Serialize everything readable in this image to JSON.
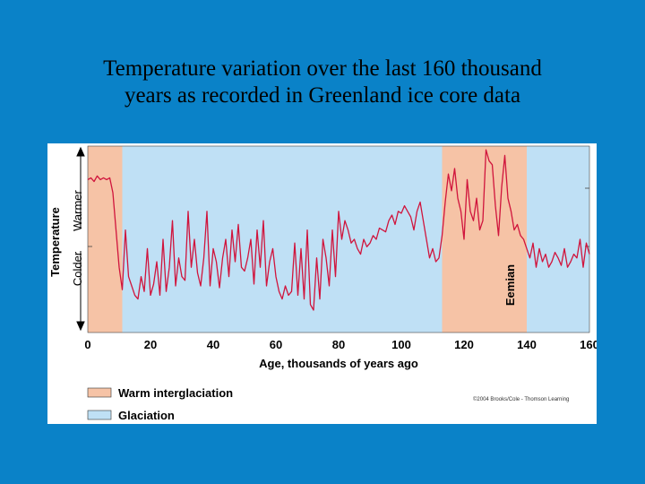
{
  "slide": {
    "title_line1": "Temperature variation over the last 160 thousand",
    "title_line2": "years as recorded in Greenland ice core data"
  },
  "colors": {
    "background": "#0a82c8",
    "warm": "#f6c3a6",
    "glaciation": "#bfe0f5",
    "line": "#d0143c"
  },
  "chart_data": {
    "type": "line",
    "title": "Temperature variation over the last 160 thousand years as recorded in Greenland ice core data",
    "xlabel": "Age, thousands of years ago",
    "ylabel": "Temperature",
    "y_direction_labels": {
      "warmer": "Warmer",
      "colder": "Colder"
    },
    "x_ticks": [
      0,
      20,
      40,
      60,
      80,
      100,
      120,
      140,
      160
    ],
    "xlim": [
      0,
      160
    ],
    "ylim": [
      0,
      10
    ],
    "y_scale_note": "relative temperature, 0 = coldest, 10 = warmest (unlabeled axis)",
    "shaded_regions": [
      {
        "label": "Warm interglaciation",
        "start": 0,
        "end": 11
      },
      {
        "label": "Glaciation",
        "start": 11,
        "end": 113
      },
      {
        "label": "Eemian",
        "start": 113,
        "end": 140,
        "type": "Warm interglaciation"
      },
      {
        "label": "Glaciation",
        "start": 140,
        "end": 160
      }
    ],
    "annotations": [
      {
        "text": "Eemian",
        "x": 136
      }
    ],
    "legend": [
      {
        "label": "Warm interglaciation",
        "color": "#f6c3a6"
      },
      {
        "label": "Glaciation",
        "color": "#bfe0f5"
      }
    ],
    "credit": "©2004 Brooks/Cole - Thomson Learning",
    "series": [
      {
        "name": "Greenland ice core temperature",
        "x": [
          0,
          1,
          2,
          3,
          4,
          5,
          6,
          7,
          8,
          9,
          10,
          11,
          12,
          13,
          14,
          15,
          16,
          17,
          18,
          19,
          20,
          21,
          22,
          23,
          24,
          25,
          26,
          27,
          28,
          29,
          30,
          31,
          32,
          33,
          34,
          35,
          36,
          37,
          38,
          39,
          40,
          41,
          42,
          43,
          44,
          45,
          46,
          47,
          48,
          49,
          50,
          51,
          52,
          53,
          54,
          55,
          56,
          57,
          58,
          59,
          60,
          61,
          62,
          63,
          64,
          65,
          66,
          67,
          68,
          69,
          70,
          71,
          72,
          73,
          74,
          75,
          76,
          77,
          78,
          79,
          80,
          81,
          82,
          83,
          84,
          85,
          86,
          87,
          88,
          89,
          90,
          91,
          92,
          93,
          94,
          95,
          96,
          97,
          98,
          99,
          100,
          101,
          102,
          103,
          104,
          105,
          106,
          107,
          108,
          109,
          110,
          111,
          112,
          113,
          114,
          115,
          116,
          117,
          118,
          119,
          120,
          121,
          122,
          123,
          124,
          125,
          126,
          127,
          128,
          129,
          130,
          131,
          132,
          133,
          134,
          135,
          136,
          137,
          138,
          139,
          140,
          141,
          142,
          143,
          144,
          145,
          146,
          147,
          148,
          149,
          150,
          151,
          152,
          153,
          154,
          155,
          156,
          157,
          158,
          159,
          160
        ],
        "y": [
          8.2,
          8.3,
          8.1,
          8.4,
          8.2,
          8.3,
          8.2,
          8.3,
          7.5,
          5.5,
          3.5,
          2.3,
          5.5,
          3.0,
          2.5,
          2.0,
          1.8,
          3.0,
          2.2,
          4.5,
          2.0,
          2.6,
          3.8,
          2.0,
          5.0,
          2.2,
          3.5,
          6.0,
          2.5,
          4.0,
          3.0,
          2.8,
          6.5,
          3.5,
          5.0,
          3.2,
          2.5,
          4.0,
          6.5,
          2.5,
          4.5,
          3.8,
          2.4,
          4.0,
          5.0,
          3.0,
          5.5,
          3.8,
          5.8,
          3.5,
          3.3,
          4.0,
          5.0,
          2.6,
          5.5,
          3.5,
          6.0,
          2.5,
          3.8,
          4.5,
          3.0,
          2.2,
          1.8,
          2.5,
          2.0,
          2.2,
          4.8,
          2.0,
          4.5,
          1.8,
          5.5,
          1.5,
          1.2,
          4.0,
          1.8,
          5.0,
          4.0,
          2.5,
          5.5,
          3.0,
          6.5,
          5.0,
          6.0,
          5.5,
          4.8,
          5.0,
          4.5,
          4.2,
          5.0,
          4.6,
          4.8,
          5.2,
          5.0,
          5.6,
          5.5,
          5.4,
          6.0,
          6.3,
          5.8,
          6.5,
          6.4,
          6.8,
          6.5,
          6.2,
          5.5,
          6.5,
          7.0,
          6.0,
          5.0,
          4.0,
          4.5,
          3.8,
          4.0,
          5.2,
          7.0,
          8.5,
          7.6,
          8.8,
          7.2,
          6.5,
          5.0,
          8.2,
          6.5,
          6.0,
          7.2,
          5.5,
          6.0,
          9.8,
          9.2,
          9.0,
          6.8,
          5.2,
          7.8,
          9.5,
          7.2,
          6.5,
          5.5,
          5.8,
          5.2,
          5.0,
          4.5,
          4.0,
          4.8,
          3.5,
          4.5,
          3.8,
          4.2,
          3.5,
          3.8,
          4.3,
          4.0,
          3.6,
          4.5,
          3.5,
          3.8,
          4.2,
          4.0,
          5.0,
          3.5,
          4.8,
          4.2
        ]
      }
    ]
  }
}
